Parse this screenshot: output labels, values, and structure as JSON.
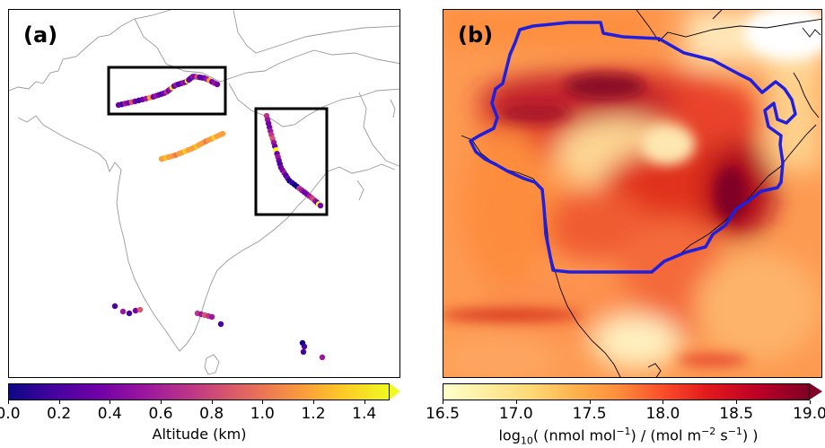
{
  "panel_a": {
    "label": "(a)",
    "colorbar": {
      "colormap": "plasma",
      "label": "Altitude (km)",
      "ticks": [
        "0.0",
        "0.2",
        "0.4",
        "0.6",
        "0.8",
        "1.0",
        "1.2",
        "1.4"
      ],
      "range": [
        0.0,
        1.5
      ],
      "extend": "max"
    }
  },
  "panel_b": {
    "label": "(b)",
    "colorbar": {
      "colormap": "YlOrRd",
      "label_prefix": "log",
      "label_sub": "10",
      "label_rest": "( (nmol mol",
      "ticks": [
        "16.5",
        "17.0",
        "17.5",
        "18.0",
        "18.5",
        "19.0"
      ],
      "range": [
        16.5,
        19.0
      ],
      "extend": "max"
    },
    "region_outline_color": "#1f1fdc"
  }
}
